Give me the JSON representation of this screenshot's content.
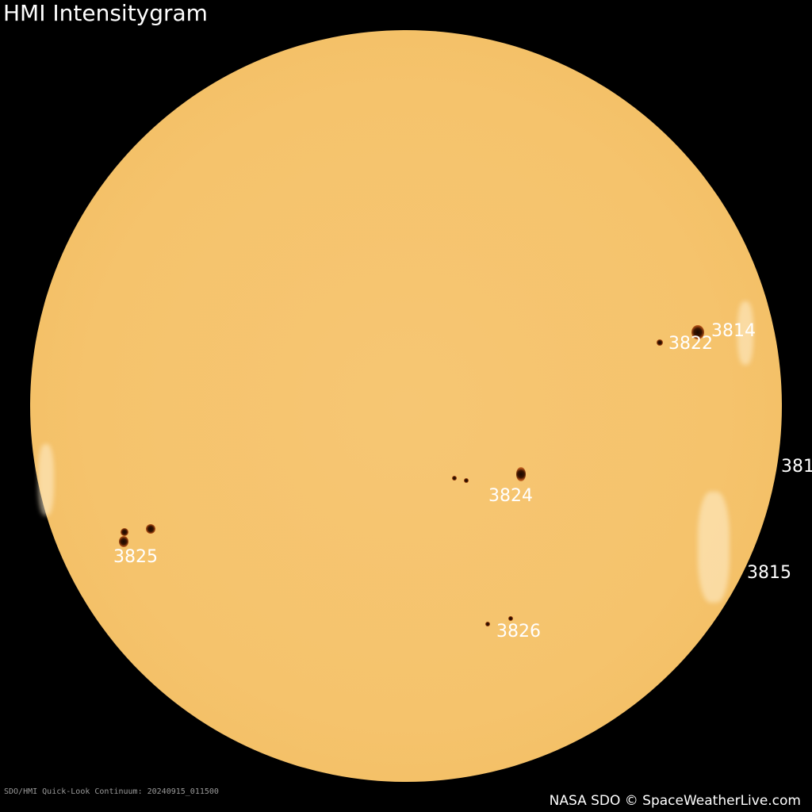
{
  "title": "HMI Intensitygram",
  "caption": "SDO/HMI Quick-Look Continuum: 20240915_011500",
  "credit": "NASA SDO © SpaceWeatherLive.com",
  "colors": {
    "background": "#000000",
    "solar_disk": "#f5c36c",
    "sunspot": "#2a0c00",
    "label": "#ffffff"
  },
  "regions": [
    {
      "label": "3814"
    },
    {
      "label": "3822"
    },
    {
      "label": "381"
    },
    {
      "label": "3824"
    },
    {
      "label": "3825"
    },
    {
      "label": "3815"
    },
    {
      "label": "3826"
    }
  ]
}
